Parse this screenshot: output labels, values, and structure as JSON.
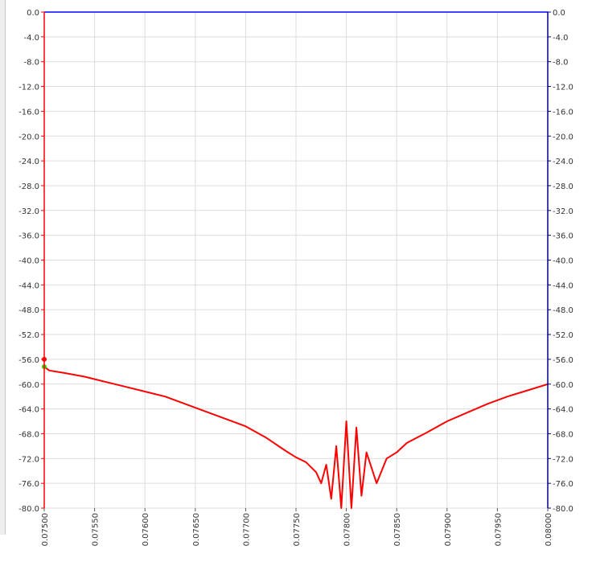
{
  "chart_data": {
    "type": "line",
    "title": "",
    "xlabel": "",
    "ylabel": "",
    "xlim": [
      0.075,
      0.08
    ],
    "ylim": [
      -80.0,
      0.0
    ],
    "y2lim": [
      -80.0,
      0.0
    ],
    "grid": true,
    "x_ticks": [
      "0.07500",
      "0.07550",
      "0.07600",
      "0.07650",
      "0.07700",
      "0.07750",
      "0.07800",
      "0.07850",
      "0.07900",
      "0.07950",
      "0.08000"
    ],
    "y_ticks": [
      "0.0",
      "-4.0",
      "-8.0",
      "-12.0",
      "-16.0",
      "-20.0",
      "-24.0",
      "-28.0",
      "-32.0",
      "-36.0",
      "-40.0",
      "-44.0",
      "-48.0",
      "-52.0",
      "-56.0",
      "-60.0",
      "-64.0",
      "-68.0",
      "-72.0",
      "-76.0",
      "-80.0"
    ],
    "y2_ticks": [
      "0.0",
      "-4.0",
      "-8.0",
      "-12.0",
      "-16.0",
      "-20.0",
      "-24.0",
      "-28.0",
      "-32.0",
      "-36.0",
      "-40.0",
      "-44.0",
      "-48.0",
      "-52.0",
      "-56.0",
      "-60.0",
      "-64.0",
      "-68.0",
      "-72.0",
      "-76.0",
      "-80.0"
    ],
    "colors": {
      "left_axis": "#ff0000",
      "right_axis": "#00008b",
      "grid": "#dddddd",
      "series_red": "#ff0000",
      "series_blue": "#0000ff",
      "marker_green": "#33cc00"
    },
    "series": [
      {
        "color": "#ff0000",
        "x": [
          0.075,
          0.07505,
          0.0752,
          0.0754,
          0.0756,
          0.0758,
          0.076,
          0.0762,
          0.0764,
          0.0766,
          0.0768,
          0.077,
          0.0772,
          0.0774,
          0.0775,
          0.0776,
          0.0777,
          0.07775,
          0.0778,
          0.07785,
          0.0779,
          0.07795,
          0.078,
          0.07805,
          0.0781,
          0.07815,
          0.0782,
          0.0783,
          0.0784,
          0.0785,
          0.0786,
          0.0788,
          0.079,
          0.0792,
          0.0794,
          0.0796,
          0.0798,
          0.08
        ],
        "y": [
          -57.2,
          -57.8,
          -58.2,
          -58.8,
          -59.6,
          -60.4,
          -61.2,
          -62.0,
          -63.2,
          -64.4,
          -65.6,
          -66.8,
          -68.6,
          -70.8,
          -71.8,
          -72.6,
          -74.2,
          -76.0,
          -73.0,
          -78.5,
          -70.0,
          -80.0,
          -66.0,
          -80.0,
          -67.0,
          -78.0,
          -71.0,
          -76.0,
          -72.0,
          -71.0,
          -69.5,
          -67.8,
          -66.0,
          -64.6,
          -63.2,
          -62.0,
          -61.0,
          -60.0
        ]
      },
      {
        "color": "#0000ff",
        "x": [
          0.075,
          0.08
        ],
        "y": [
          0.0,
          0.0
        ]
      }
    ],
    "markers": [
      {
        "x": 0.075,
        "y": -56.0,
        "color": "#ff0000"
      },
      {
        "x": 0.075,
        "y": -57.2,
        "color": "#33cc00"
      }
    ]
  }
}
